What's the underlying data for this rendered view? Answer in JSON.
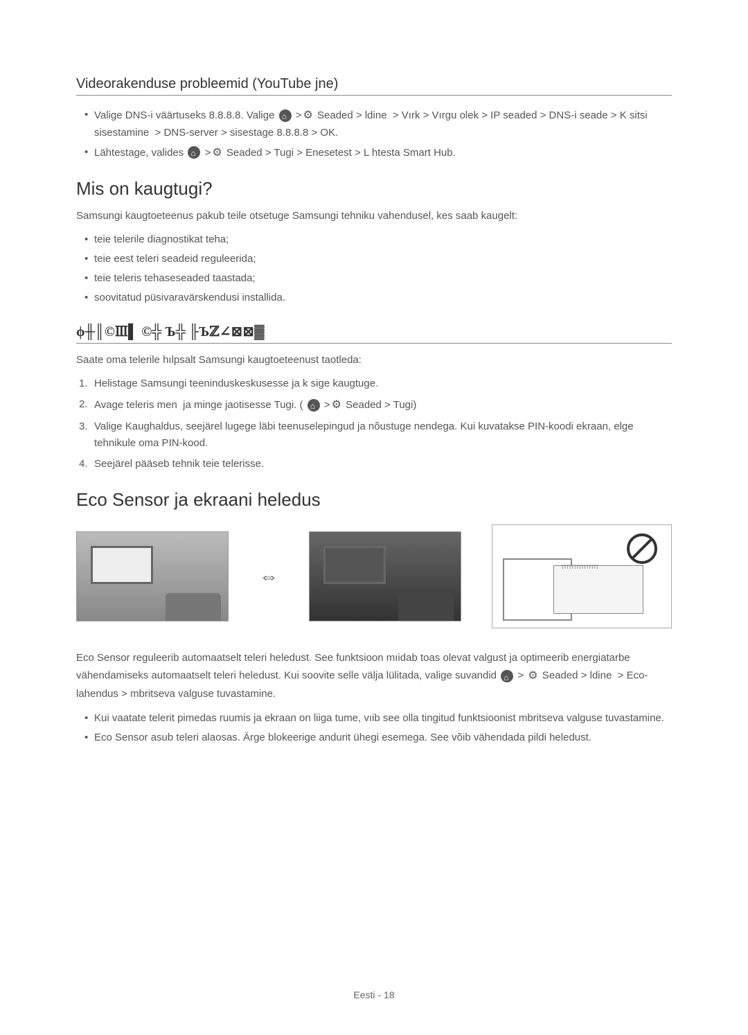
{
  "section1": {
    "title": "Videorakenduse probleemid (YouTube jne)",
    "bullets": [
      "Valige DNS-i väärtuseks 8.8.8.8. Valige [HOME] > [GEAR] Seaded > ldine > Vırk > Vırgu olek > IP seaded > DNS-i seade > K sitsi sisestamine > DNS-server > sisestage 8.8.8.8 > OK.",
      "Lähtestage, valides [HOME] > [GEAR] Seaded > Tugi > Enesetest > L htesta Smart Hub."
    ]
  },
  "section2": {
    "title": "Mis on kaugtugi?",
    "intro": "Samsungi kaugtoeteenus pakub teile otsetuge Samsungi tehniku vahendusel, kes saab kaugelt:",
    "bullets": [
      "teie telerile diagnostikat teha;",
      "teie eest teleri seadeid reguleerida;",
      "teie teleris tehaseseaded taastada;",
      "soovitatud püsivaravärskendusi installida."
    ]
  },
  "section3": {
    "title": "Kuidas kaugtugi töötab?",
    "intro": "Saate oma telerile hılpsalt Samsungi kaugtoeteenust taotleda:",
    "steps": [
      "Helistage Samsungi teeninduskeskusesse ja k sige kaugtuge.",
      "Avage teleris men ja minge jaotisesse Tugi. ( [HOME] > [GEAR] Seaded > Tugi)",
      "Valige Kaughaldus, seejärel lugege läbi teenuselepingud ja nõustuge nendega. Kui kuvatakse PIN-koodi ekraan, elge tehnikule oma PIN-kood.",
      "Seejärel pääseb tehnik teie telerisse."
    ]
  },
  "section4": {
    "title": "Eco Sensor ja ekraani heledus",
    "body": "Eco Sensor reguleerib automaatselt teleri heledust. See funktsioon mıidab toas olevat valgust ja optimeerib energiatarbe vähendamiseks automaatselt teleri heledust. Kui soovite selle välja lülitada, valige suvandid [HOME] > [GEAR] Seaded > ldine > Eco-lahendus > mbritseva valguse tuvastamine.",
    "bullets": [
      "Kui vaatate telerit pimedas ruumis ja ekraan on liiga tume, vıib see olla tingitud funktsioonist mbritseva valguse tuvastamine.",
      "Eco Sensor asub teleri alaosas. Ärge blokeerige andurit ühegi esemega. See võib vähendada pildi heledust."
    ]
  },
  "footer": "Eesti - 18"
}
